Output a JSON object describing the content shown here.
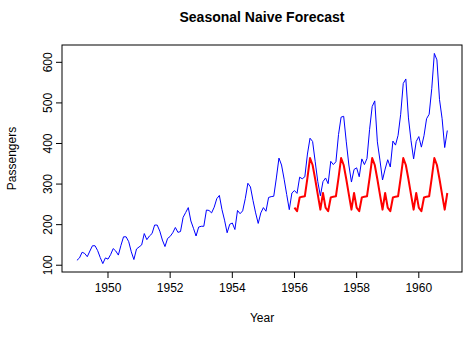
{
  "chart_data": {
    "type": "line",
    "title": "Seasonal Naive Forecast",
    "x_label": "Year",
    "y_label": "Passengers",
    "xlim": [
      1948.52,
      1961.39
    ],
    "xticks": [
      1950,
      1952,
      1954,
      1956,
      1958,
      1960
    ],
    "ylim": [
      83.3,
      642.7
    ],
    "yticks": [
      100,
      200,
      300,
      400,
      500,
      600
    ],
    "grid": false,
    "series": [
      {
        "color": "#0000ff",
        "x": [
          1949,
          1949.083,
          1949.167,
          1949.25,
          1949.333,
          1949.417,
          1949.5,
          1949.583,
          1949.667,
          1949.75,
          1949.833,
          1949.917,
          1950,
          1950.083,
          1950.167,
          1950.25,
          1950.333,
          1950.417,
          1950.5,
          1950.583,
          1950.667,
          1950.75,
          1950.833,
          1950.917,
          1951,
          1951.083,
          1951.167,
          1951.25,
          1951.333,
          1951.417,
          1951.5,
          1951.583,
          1951.667,
          1951.75,
          1951.833,
          1951.917,
          1952,
          1952.083,
          1952.167,
          1952.25,
          1952.333,
          1952.417,
          1952.5,
          1952.583,
          1952.667,
          1952.75,
          1952.833,
          1952.917,
          1953,
          1953.083,
          1953.167,
          1953.25,
          1953.333,
          1953.417,
          1953.5,
          1953.583,
          1953.667,
          1953.75,
          1953.833,
          1953.917,
          1954,
          1954.083,
          1954.167,
          1954.25,
          1954.333,
          1954.417,
          1954.5,
          1954.583,
          1954.667,
          1954.75,
          1954.833,
          1954.917,
          1955,
          1955.083,
          1955.167,
          1955.25,
          1955.333,
          1955.417,
          1955.5,
          1955.583,
          1955.667,
          1955.75,
          1955.833,
          1955.917,
          1956,
          1956.083,
          1956.167,
          1956.25,
          1956.333,
          1956.417,
          1956.5,
          1956.583,
          1956.667,
          1956.75,
          1956.833,
          1956.917,
          1957,
          1957.083,
          1957.167,
          1957.25,
          1957.333,
          1957.417,
          1957.5,
          1957.583,
          1957.667,
          1957.75,
          1957.833,
          1957.917,
          1958,
          1958.083,
          1958.167,
          1958.25,
          1958.333,
          1958.417,
          1958.5,
          1958.583,
          1958.667,
          1958.75,
          1958.833,
          1958.917,
          1959,
          1959.083,
          1959.167,
          1959.25,
          1959.333,
          1959.417,
          1959.5,
          1959.583,
          1959.667,
          1959.75,
          1959.833,
          1959.917,
          1960,
          1960.083,
          1960.167,
          1960.25,
          1960.333,
          1960.417,
          1960.5,
          1960.583,
          1960.667,
          1960.75,
          1960.833,
          1960.917
        ],
        "values": [
          112,
          118,
          132,
          129,
          121,
          135,
          148,
          148,
          136,
          119,
          104,
          118,
          115,
          126,
          141,
          135,
          125,
          149,
          170,
          170,
          158,
          133,
          114,
          140,
          145,
          150,
          178,
          163,
          172,
          178,
          199,
          199,
          184,
          162,
          146,
          166,
          171,
          180,
          193,
          181,
          183,
          218,
          230,
          242,
          209,
          191,
          172,
          194,
          196,
          196,
          236,
          235,
          229,
          243,
          264,
          272,
          237,
          211,
          180,
          201,
          204,
          188,
          235,
          227,
          234,
          264,
          302,
          293,
          259,
          229,
          203,
          229,
          242,
          233,
          267,
          269,
          270,
          315,
          364,
          347,
          312,
          274,
          237,
          278,
          284,
          277,
          317,
          313,
          318,
          374,
          413,
          405,
          355,
          306,
          271,
          306,
          315,
          301,
          356,
          348,
          355,
          422,
          465,
          467,
          404,
          347,
          305,
          336,
          340,
          318,
          362,
          348,
          363,
          435,
          491,
          505,
          404,
          359,
          310,
          337,
          360,
          342,
          406,
          396,
          420,
          472,
          548,
          559,
          463,
          407,
          362,
          405,
          417,
          391,
          419,
          461,
          472,
          535,
          622,
          606,
          508,
          461,
          390,
          432
        ]
      },
      {
        "color": "#ff0000",
        "x": [
          1956,
          1956.083,
          1956.167,
          1956.25,
          1956.333,
          1956.417,
          1956.5,
          1956.583,
          1956.667,
          1956.75,
          1956.833,
          1956.917,
          1957,
          1957.083,
          1957.167,
          1957.25,
          1957.333,
          1957.417,
          1957.5,
          1957.583,
          1957.667,
          1957.75,
          1957.833,
          1957.917,
          1958,
          1958.083,
          1958.167,
          1958.25,
          1958.333,
          1958.417,
          1958.5,
          1958.583,
          1958.667,
          1958.75,
          1958.833,
          1958.917,
          1959,
          1959.083,
          1959.167,
          1959.25,
          1959.333,
          1959.417,
          1959.5,
          1959.583,
          1959.667,
          1959.75,
          1959.833,
          1959.917,
          1960,
          1960.083,
          1960.167,
          1960.25,
          1960.333,
          1960.417,
          1960.5,
          1960.583,
          1960.667,
          1960.75,
          1960.833,
          1960.917
        ],
        "values": [
          242,
          233,
          267,
          269,
          270,
          315,
          364,
          347,
          312,
          274,
          237,
          278,
          242,
          233,
          267,
          269,
          270,
          315,
          364,
          347,
          312,
          274,
          237,
          278,
          242,
          233,
          267,
          269,
          270,
          315,
          364,
          347,
          312,
          274,
          237,
          278,
          242,
          233,
          267,
          269,
          270,
          315,
          364,
          347,
          312,
          274,
          237,
          278,
          242,
          233,
          267,
          269,
          270,
          315,
          364,
          347,
          312,
          274,
          237,
          278
        ]
      }
    ]
  }
}
